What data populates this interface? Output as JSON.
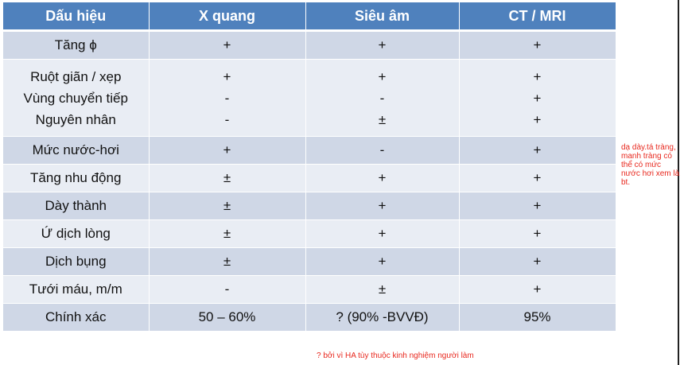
{
  "table": {
    "headers": [
      "Dấu hiệu",
      "X quang",
      "Siêu âm",
      "CT / MRI"
    ],
    "rows": [
      {
        "sign": [
          "Tăng ϕ"
        ],
        "xray": [
          "+"
        ],
        "us": [
          "+"
        ],
        "ct": [
          "+"
        ]
      },
      {
        "sign": [
          "Ruột giãn / xẹp",
          "Vùng chuyển tiếp",
          "Nguyên nhân"
        ],
        "xray": [
          "+",
          "-",
          "-"
        ],
        "us": [
          "+",
          "-",
          "±"
        ],
        "ct": [
          "+",
          "+",
          "+"
        ]
      },
      {
        "sign": [
          "Mức nước-hơi"
        ],
        "xray": [
          "+"
        ],
        "us": [
          "-"
        ],
        "ct": [
          "+"
        ]
      },
      {
        "sign": [
          "Tăng nhu động"
        ],
        "xray": [
          "±"
        ],
        "us": [
          "+"
        ],
        "ct": [
          "+"
        ]
      },
      {
        "sign": [
          "Dày thành"
        ],
        "xray": [
          "±"
        ],
        "us": [
          "+"
        ],
        "ct": [
          "+"
        ]
      },
      {
        "sign": [
          "Ứ dịch lòng"
        ],
        "xray": [
          "±"
        ],
        "us": [
          "+"
        ],
        "ct": [
          "+"
        ]
      },
      {
        "sign": [
          "Dịch bụng"
        ],
        "xray": [
          "±"
        ],
        "us": [
          "+"
        ],
        "ct": [
          "+"
        ]
      },
      {
        "sign": [
          "Tưới máu, m/m"
        ],
        "xray": [
          "-"
        ],
        "us": [
          "±"
        ],
        "ct": [
          "+"
        ]
      },
      {
        "sign": [
          "Chính xác"
        ],
        "xray": [
          "50 – 60%"
        ],
        "us": [
          "? (90% -BVVĐ)"
        ],
        "ct": [
          "95%"
        ]
      }
    ]
  },
  "side_note": "dạ dày.tá tràng, manh tràng có thể có mức nước hơi xem là bt.",
  "foot_note": "? bởi vì HA tùy thuộc kinh nghiệm người làm",
  "colors": {
    "header_bg": "#4f81bd",
    "row_dark": "#cfd7e6",
    "row_light": "#e9edf4",
    "note": "#e8281e"
  }
}
